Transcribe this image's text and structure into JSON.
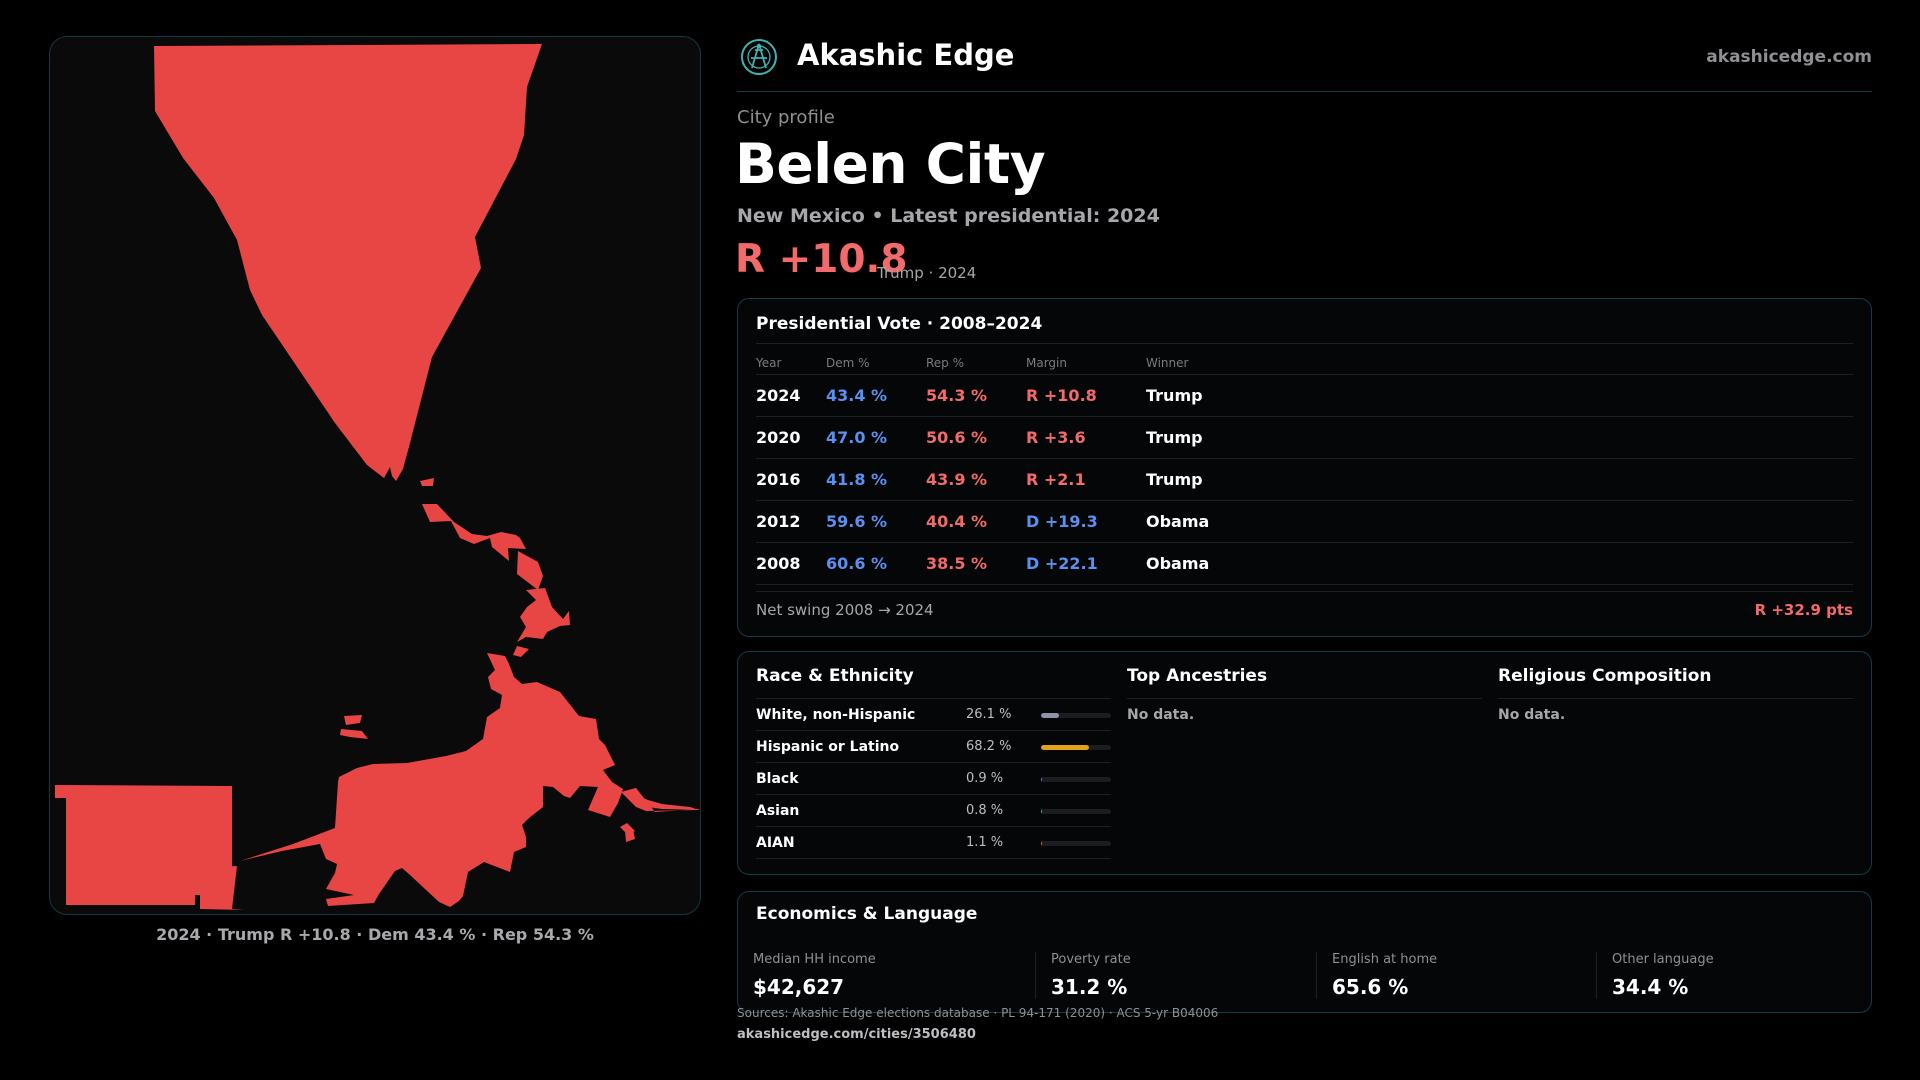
{
  "brand": {
    "name": "Akashic Edge",
    "url": "akashicedge.com",
    "logo_icon": "akashic-edge-logo-icon"
  },
  "profile": {
    "eyebrow": "City profile",
    "city": "Belen City",
    "subtitle": "New Mexico • Latest presidential: 2024",
    "headline_margin": "R +10.8",
    "headline_note": "Trump · 2024"
  },
  "map": {
    "caption": "2024 · Trump R +10.8 · Dem 43.4 % · Rep 54.3 %",
    "fill_color": "#e84545"
  },
  "presidential": {
    "title": "Presidential Vote · 2008–2024",
    "columns": [
      "Year",
      "Dem %",
      "Rep %",
      "Margin",
      "Winner"
    ],
    "rows": [
      {
        "year": "2024",
        "dem": "43.4 %",
        "rep": "54.3 %",
        "margin": "R +10.8",
        "party": "R",
        "winner": "Trump"
      },
      {
        "year": "2020",
        "dem": "47.0 %",
        "rep": "50.6 %",
        "margin": "R +3.6",
        "party": "R",
        "winner": "Trump"
      },
      {
        "year": "2016",
        "dem": "41.8 %",
        "rep": "43.9 %",
        "margin": "R +2.1",
        "party": "R",
        "winner": "Trump"
      },
      {
        "year": "2012",
        "dem": "59.6 %",
        "rep": "40.4 %",
        "margin": "D +19.3",
        "party": "D",
        "winner": "Obama"
      },
      {
        "year": "2008",
        "dem": "60.6 %",
        "rep": "38.5 %",
        "margin": "D +22.1",
        "party": "D",
        "winner": "Obama"
      }
    ],
    "net_swing_label": "Net swing 2008 → 2024",
    "net_swing_value": "R +32.9 pts"
  },
  "race": {
    "title": "Race & Ethnicity",
    "rows": [
      {
        "label": "White, non-Hispanic",
        "value": "26.1 %",
        "share": 0.261,
        "color": "#8a94a6"
      },
      {
        "label": "Hispanic or Latino",
        "value": "68.2 %",
        "share": 0.682,
        "color": "#e3a21a"
      },
      {
        "label": "Black",
        "value": "0.9 %",
        "share": 0.009,
        "color": "#7d6bd6"
      },
      {
        "label": "Asian",
        "value": "0.8 %",
        "share": 0.008,
        "color": "#3fb39b"
      },
      {
        "label": "AIAN",
        "value": "1.1 %",
        "share": 0.011,
        "color": "#e0693a"
      }
    ]
  },
  "ancestry": {
    "title": "Top Ancestries",
    "empty": "No data."
  },
  "religion": {
    "title": "Religious Composition",
    "empty": "No data."
  },
  "economics": {
    "title": "Economics & Language",
    "stats": [
      {
        "label": "Median HH income",
        "value": "$42,627"
      },
      {
        "label": "Poverty rate",
        "value": "31.2 %"
      },
      {
        "label": "English at home",
        "value": "65.6 %"
      },
      {
        "label": "Other language",
        "value": "34.4 %"
      }
    ]
  },
  "footer": {
    "sources": "Sources: Akashic Edge elections database · PL 94-171 (2020) · ACS 5-yr B04006",
    "page_link": "akashicedge.com/cities/3506480"
  },
  "colors": {
    "dem": "#5b8ff0",
    "rep": "#f26a6a",
    "accent": "#143c42"
  }
}
